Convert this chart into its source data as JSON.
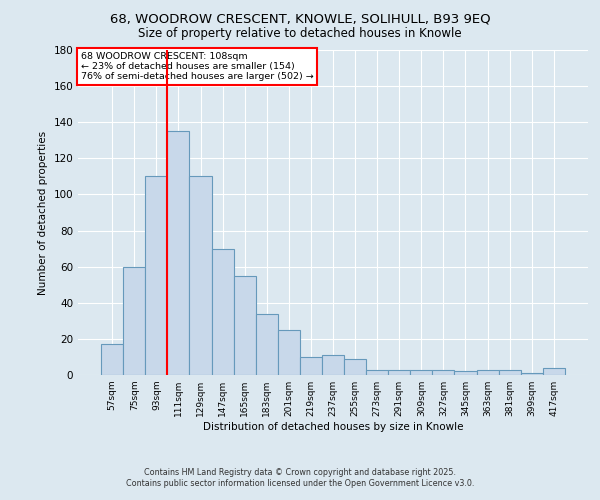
{
  "title_line1": "68, WOODROW CRESCENT, KNOWLE, SOLIHULL, B93 9EQ",
  "title_line2": "Size of property relative to detached houses in Knowle",
  "xlabel": "Distribution of detached houses by size in Knowle",
  "ylabel": "Number of detached properties",
  "categories": [
    "57sqm",
    "75sqm",
    "93sqm",
    "111sqm",
    "129sqm",
    "147sqm",
    "165sqm",
    "183sqm",
    "201sqm",
    "219sqm",
    "237sqm",
    "255sqm",
    "273sqm",
    "291sqm",
    "309sqm",
    "327sqm",
    "345sqm",
    "363sqm",
    "381sqm",
    "399sqm",
    "417sqm"
  ],
  "values": [
    17,
    60,
    110,
    135,
    110,
    70,
    55,
    34,
    25,
    10,
    11,
    9,
    3,
    3,
    3,
    3,
    2,
    3,
    3,
    1,
    4
  ],
  "bar_color": "#c8d8ea",
  "bar_edge_color": "#6699bb",
  "vline_x": 2.5,
  "vline_color": "red",
  "annotation_box_text": "68 WOODROW CRESCENT: 108sqm\n← 23% of detached houses are smaller (154)\n76% of semi-detached houses are larger (502) →",
  "background_color": "#dce8f0",
  "plot_bg_color": "#dce8f0",
  "grid_color": "#ffffff",
  "ylim": [
    0,
    180
  ],
  "yticks": [
    0,
    20,
    40,
    60,
    80,
    100,
    120,
    140,
    160,
    180
  ],
  "footer_line1": "Contains HM Land Registry data © Crown copyright and database right 2025.",
  "footer_line2": "Contains public sector information licensed under the Open Government Licence v3.0."
}
